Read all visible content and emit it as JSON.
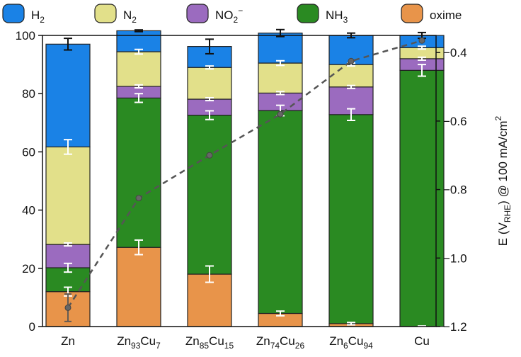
{
  "chart_data": {
    "type": "bar",
    "stacked": true,
    "categories": [
      {
        "base": "Zn",
        "parts": [
          {
            "t": "Zn",
            "sub": ""
          }
        ]
      },
      {
        "base": "Zn93Cu7",
        "parts": [
          {
            "t": "Zn",
            "sub": "93"
          },
          {
            "t": "Cu",
            "sub": "7"
          }
        ]
      },
      {
        "base": "Zn85Cu15",
        "parts": [
          {
            "t": "Zn",
            "sub": "85"
          },
          {
            "t": "Cu",
            "sub": "15"
          }
        ]
      },
      {
        "base": "Zn74Cu26",
        "parts": [
          {
            "t": "Zn",
            "sub": "74"
          },
          {
            "t": "Cu",
            "sub": "26"
          }
        ]
      },
      {
        "base": "Zn6Cu94",
        "parts": [
          {
            "t": "Zn",
            "sub": "6"
          },
          {
            "t": "Cu",
            "sub": "94"
          }
        ]
      },
      {
        "base": "Cu",
        "parts": [
          {
            "t": "Cu",
            "sub": ""
          }
        ]
      }
    ],
    "series": [
      {
        "name": "oxime",
        "name_main": "oxime",
        "name_sub": "",
        "name_sup": "",
        "color": "#e8944a",
        "values": [
          12,
          27.2,
          18,
          4.5,
          1,
          0
        ],
        "errors": [
          1.5,
          2.5,
          2.8,
          0.8,
          0.4,
          0.2
        ]
      },
      {
        "name": "NH3",
        "name_main": "NH",
        "name_sub": "3",
        "name_sup": "",
        "color": "#2a8a22",
        "values": [
          8.2,
          51.3,
          54.6,
          69.7,
          71.8,
          88
        ],
        "errors": [
          1.5,
          1.5,
          1.5,
          1.8,
          2.0,
          2.0
        ]
      },
      {
        "name": "NO2−",
        "name_main": "NO",
        "name_sub": "2",
        "name_sup": "−",
        "color": "#9b6bbf",
        "values": [
          8,
          4,
          5.5,
          6,
          9.5,
          4
        ],
        "errors": [
          0.5,
          0.5,
          0.5,
          0.5,
          0.5,
          0.5
        ]
      },
      {
        "name": "N2",
        "name_main": "N",
        "name_sub": "2",
        "name_sup": "",
        "color": "#e2e08a",
        "values": [
          33.5,
          11.9,
          10.9,
          10.3,
          7.7,
          3.8
        ],
        "errors": [
          2.5,
          0.8,
          0.5,
          0.8,
          0.5,
          0.5
        ]
      },
      {
        "name": "H2",
        "name_main": "H",
        "name_sub": "2",
        "name_sup": "",
        "color": "#1a82e6",
        "values": [
          35.3,
          7.2,
          7.2,
          10.3,
          10,
          4.2
        ],
        "errors": [
          2.0,
          0.3,
          2.5,
          1.2,
          0.8,
          1.0
        ]
      }
    ],
    "legend_order": [
      "H2",
      "N2",
      "NO2−",
      "NH3",
      "oxime"
    ],
    "legend_position": "top",
    "ylim": [
      0,
      100
    ],
    "yticks": [
      0,
      20,
      40,
      60,
      80,
      100
    ],
    "y2": {
      "label_main": "E (V",
      "label_sub": "RHE",
      "label_rest": ") @ 100 mA/cm",
      "label_sup": "2",
      "ylim": [
        -1.2,
        -0.35
      ],
      "yticks": [
        "−1.2",
        "−1.0",
        "−0.8",
        "−0.6",
        "−0.4"
      ],
      "ytick_values": [
        -1.2,
        -1.0,
        -0.8,
        -0.6,
        -0.4
      ],
      "potential_series": {
        "values": [
          -1.145,
          -0.825,
          -0.7,
          -0.58,
          -0.425,
          -0.365
        ],
        "errors": [
          0.04,
          0,
          0,
          0,
          0,
          0
        ],
        "style": "dashed",
        "color": "#555555"
      }
    },
    "grid": false
  }
}
